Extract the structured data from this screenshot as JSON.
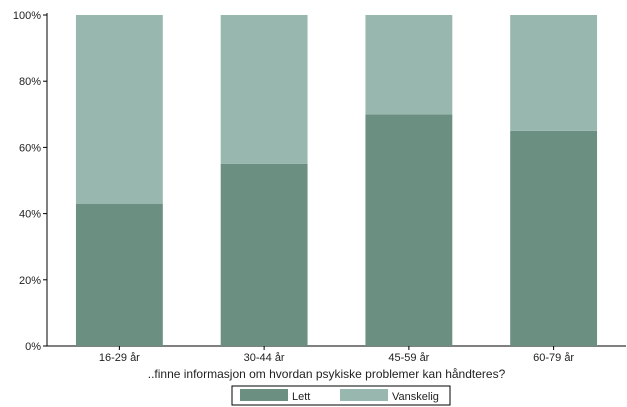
{
  "chart_data": {
    "type": "bar",
    "stacked": true,
    "categories": [
      "16-29 år",
      "30-44 år",
      "45-59 år",
      "60-79 år"
    ],
    "series": [
      {
        "name": "Lett",
        "values": [
          43,
          55,
          70,
          65
        ],
        "color": "#6b8f80"
      },
      {
        "name": "Vanskelig",
        "values": [
          57,
          45,
          30,
          35
        ],
        "color": "#98b7ae"
      }
    ],
    "xlabel": "..finne informasjon om hvordan psykiske problemer kan håndteres?",
    "ylabel": "",
    "ylim": [
      0,
      100
    ],
    "y_ticks": [
      "0%",
      "20%",
      "40%",
      "60%",
      "80%",
      "100%"
    ],
    "grid": false,
    "legend_position": "bottom"
  }
}
